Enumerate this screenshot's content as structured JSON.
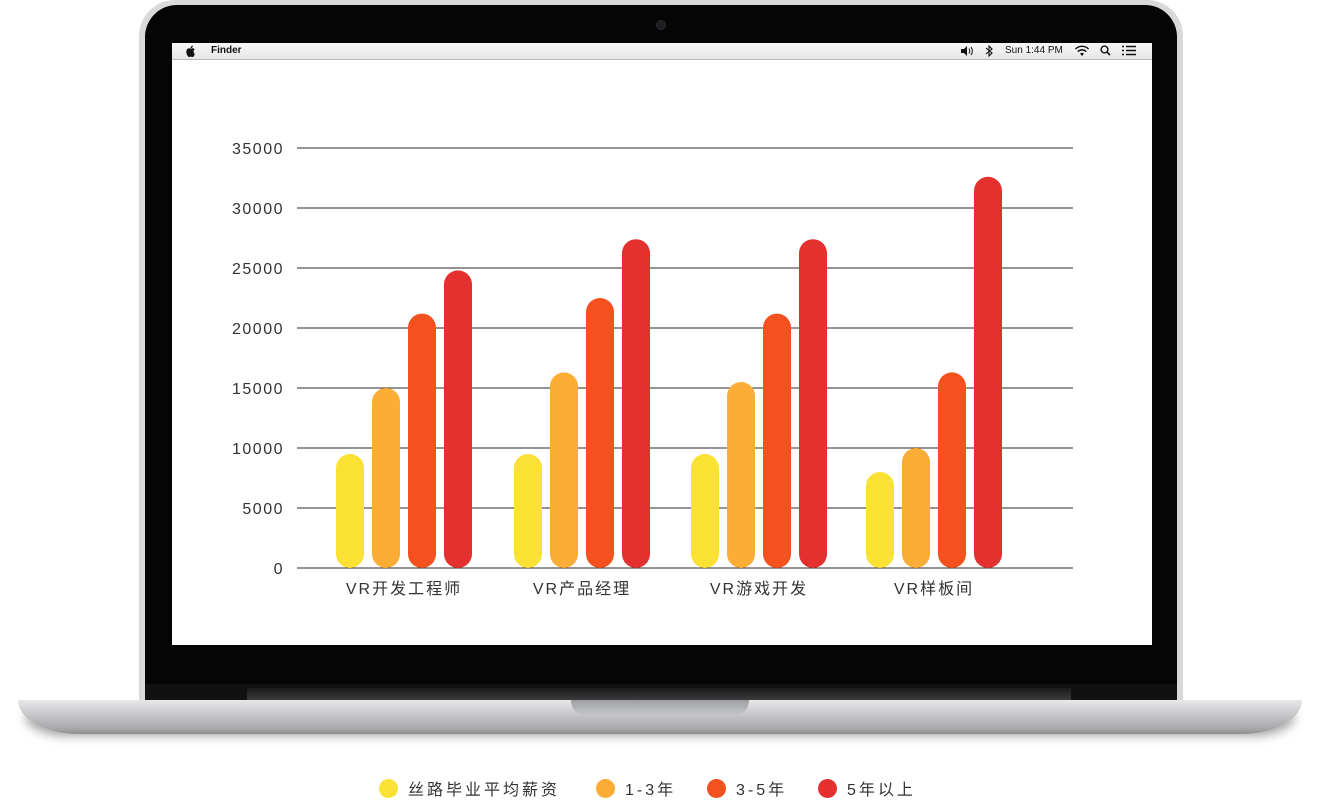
{
  "menubar": {
    "app_name": "Finder",
    "clock": "Sun 1:44 PM"
  },
  "icons": {
    "apple": "apple-icon",
    "volume": "volume-icon",
    "bluetooth": "bluetooth-icon",
    "wifi": "wifi-icon",
    "search": "search-icon",
    "list": "list-icon"
  },
  "chart_data": {
    "type": "bar",
    "categories": [
      "VR开发工程师",
      "VR产品经理",
      "VR游戏开发",
      "VR样板间"
    ],
    "series": [
      {
        "name": "丝路毕业平均薪资",
        "color": "#fce135",
        "values": [
          9500,
          9500,
          9500,
          8000
        ]
      },
      {
        "name": "1-3年",
        "color": "#fbad35",
        "values": [
          15000,
          16300,
          15500,
          10000
        ]
      },
      {
        "name": "3-5年",
        "color": "#f4511e",
        "values": [
          21200,
          22500,
          21200,
          16300
        ]
      },
      {
        "name": "5年以上",
        "color": "#e53030",
        "values": [
          24800,
          27400,
          27400,
          32600
        ]
      }
    ],
    "y_ticks": [
      "35000",
      "30000",
      "25000",
      "20000",
      "15000",
      "10000",
      "5000",
      "0"
    ],
    "ylim": [
      0,
      35000
    ],
    "grid": true,
    "legend_position": "bottom"
  }
}
